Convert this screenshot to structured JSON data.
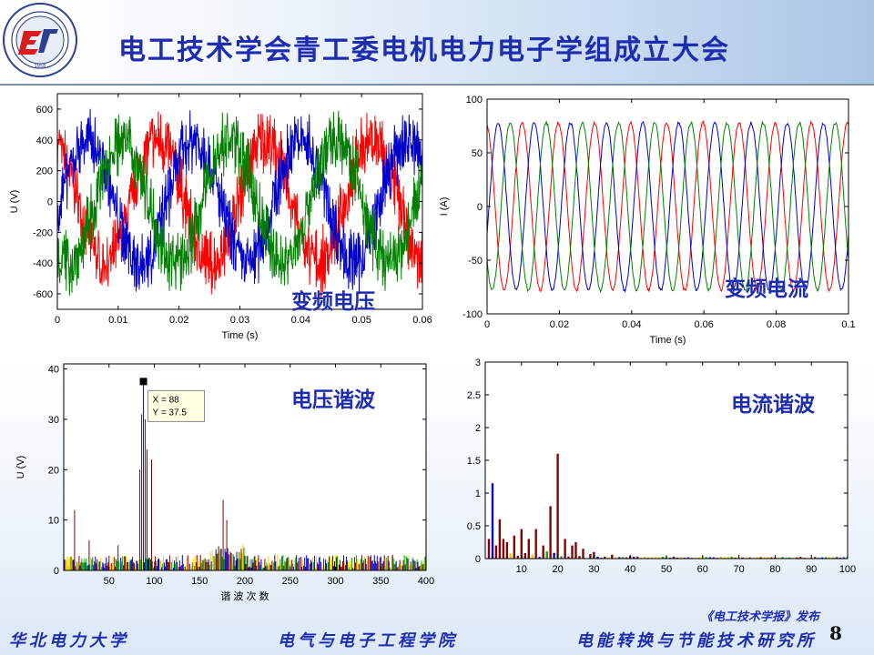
{
  "slide": {
    "title": "电工技术学会青工委电机电力电子学组成立大会",
    "credit": "《电工技术学报》发布",
    "page_number": "8",
    "footer": {
      "left": "华北电力大学",
      "center": "电气与电子工程学院",
      "right": "电能转换与节能技术研究所"
    },
    "logo": {
      "name": "north-china-electric-power-university-seal",
      "text": "NORTH CHINA ELECTRIC POWER UNIVERSITY",
      "year": "1958"
    }
  },
  "overlays": {
    "voltage_title": "变频电压",
    "current_title": "变频电流",
    "voltage_harmonics_title": "电压谐波",
    "current_harmonics_title": "电流谐波"
  },
  "colors": {
    "title": "#1d2cb0",
    "blue": "#0000cc",
    "green": "#008000",
    "red": "#ff0000",
    "dark_red": "#8b0000"
  },
  "chart_data": [
    {
      "id": "voltage",
      "type": "line",
      "xlabel": "Time (s)",
      "ylabel": "U (V)",
      "xlim": [
        0,
        0.06
      ],
      "ylim": [
        -700,
        700
      ],
      "xticks": [
        0,
        0.01,
        0.02,
        0.03,
        0.04,
        0.05,
        0.06
      ],
      "xtick_labels": [
        "0",
        "0.01",
        "0.02",
        "0.03",
        "0.04",
        "0.05",
        "0.06"
      ],
      "yticks": [
        -600,
        -400,
        -200,
        0,
        200,
        400,
        600
      ],
      "ytick_labels": [
        "-600",
        "-400",
        "-200",
        "0",
        "200",
        "400",
        "600"
      ],
      "fundamental_hz": 57,
      "series": [
        {
          "color": "#ff0000",
          "amplitude": 400,
          "phase_deg": 110,
          "ripple": 160
        },
        {
          "color": "#0000cc",
          "amplitude": 400,
          "phase_deg": -10,
          "ripple": 160
        },
        {
          "color": "#008000",
          "amplitude": 400,
          "phase_deg": -130,
          "ripple": 160
        }
      ]
    },
    {
      "id": "current",
      "type": "line",
      "xlabel": "Time (s)",
      "ylabel": "I (A)",
      "xlim": [
        0,
        0.1
      ],
      "ylim": [
        -100,
        100
      ],
      "xticks": [
        0,
        0.02,
        0.04,
        0.06,
        0.08,
        0.1
      ],
      "xtick_labels": [
        "0",
        "0.02",
        "0.04",
        "0.06",
        "0.08",
        "0.1"
      ],
      "yticks": [
        -100,
        -50,
        0,
        50,
        100
      ],
      "ytick_labels": [
        "-100",
        "-50",
        "0",
        "50",
        "100"
      ],
      "fundamental_hz": 100,
      "series": [
        {
          "color": "#ff0000",
          "amplitude": 78,
          "phase_deg": 100
        },
        {
          "color": "#0000cc",
          "amplitude": 78,
          "phase_deg": -20
        },
        {
          "color": "#008000",
          "amplitude": 78,
          "phase_deg": -140
        }
      ]
    },
    {
      "id": "voltage_harmonics",
      "type": "bar",
      "xlabel": "谐 波 次 数",
      "ylabel": "U (V)",
      "xlim": [
        0,
        400
      ],
      "ylim": [
        0,
        41
      ],
      "xticks": [
        50,
        100,
        150,
        200,
        250,
        300,
        350,
        400
      ],
      "xtick_labels": [
        "50",
        "100",
        "150",
        "200",
        "250",
        "300",
        "350",
        "400"
      ],
      "yticks": [
        0,
        10,
        20,
        30,
        40
      ],
      "ytick_labels": [
        "0",
        "10",
        "20",
        "30",
        "40"
      ],
      "peaks": [
        {
          "x": 88,
          "y": 37.5
        },
        {
          "x": 86,
          "y": 31
        },
        {
          "x": 90,
          "y": 30
        },
        {
          "x": 92,
          "y": 24
        },
        {
          "x": 97,
          "y": 22
        },
        {
          "x": 84,
          "y": 20
        },
        {
          "x": 176,
          "y": 14
        },
        {
          "x": 180,
          "y": 10
        },
        {
          "x": 12,
          "y": 12
        },
        {
          "x": 28,
          "y": 6
        },
        {
          "x": 60,
          "y": 5
        }
      ],
      "datatip": {
        "x_label": "X = 88",
        "y_label": "Y = 37.5",
        "x": 88,
        "y": 37.5
      }
    },
    {
      "id": "current_harmonics",
      "type": "bar",
      "xlabel": "",
      "ylabel": "",
      "xlim": [
        0,
        100
      ],
      "ylim": [
        0,
        3
      ],
      "xticks": [
        10,
        20,
        30,
        40,
        50,
        60,
        70,
        80,
        90,
        100
      ],
      "xtick_labels": [
        "10",
        "20",
        "30",
        "40",
        "50",
        "60",
        "70",
        "80",
        "90",
        "100"
      ],
      "yticks": [
        0,
        0.5,
        1,
        1.5,
        2,
        2.5,
        3
      ],
      "ytick_labels": [
        "0",
        "0.5",
        "1",
        "1.5",
        "2",
        "2.5",
        "3"
      ],
      "peaks": [
        {
          "x": 1,
          "y": 0.3
        },
        {
          "x": 2,
          "y": 1.15
        },
        {
          "x": 3,
          "y": 0.2
        },
        {
          "x": 4,
          "y": 0.6
        },
        {
          "x": 5,
          "y": 0.3
        },
        {
          "x": 6,
          "y": 0.25
        },
        {
          "x": 8,
          "y": 0.35
        },
        {
          "x": 10,
          "y": 0.45
        },
        {
          "x": 12,
          "y": 0.3
        },
        {
          "x": 14,
          "y": 0.45
        },
        {
          "x": 16,
          "y": 0.2
        },
        {
          "x": 18,
          "y": 0.8
        },
        {
          "x": 20,
          "y": 1.6
        },
        {
          "x": 22,
          "y": 0.3
        },
        {
          "x": 24,
          "y": 0.2
        },
        {
          "x": 25,
          "y": 0.25
        },
        {
          "x": 27,
          "y": 0.15
        },
        {
          "x": 30,
          "y": 0.1
        },
        {
          "x": 35,
          "y": 0.06
        },
        {
          "x": 40,
          "y": 0.04
        }
      ]
    }
  ]
}
